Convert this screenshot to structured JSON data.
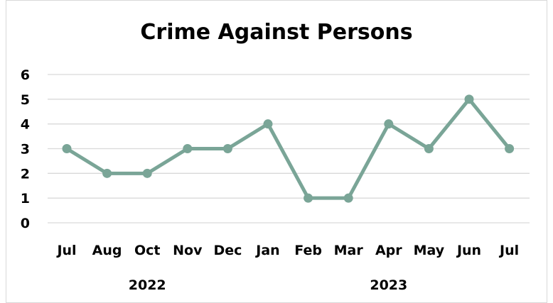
{
  "chart_data": {
    "type": "line",
    "title": "Crime Against Persons",
    "xlabel": "",
    "ylabel": "",
    "categories": [
      "Jul",
      "Aug",
      "Oct",
      "Nov",
      "Dec",
      "Jan",
      "Feb",
      "Mar",
      "Apr",
      "May",
      "Jun",
      "Jul"
    ],
    "category_groups": [
      {
        "label": "2022",
        "start": 0,
        "end": 4
      },
      {
        "label": "2023",
        "start": 5,
        "end": 11
      }
    ],
    "series": [
      {
        "values": [
          3,
          2,
          2,
          3,
          3,
          4,
          1,
          1,
          4,
          3,
          5,
          3
        ]
      }
    ],
    "ylim": [
      0,
      6
    ],
    "yticks": [
      0,
      1,
      2,
      3,
      4,
      5,
      6
    ],
    "grid": true,
    "legend": "none",
    "colors": {
      "line": "#7aa597",
      "grid": "#d9d9d9"
    }
  }
}
